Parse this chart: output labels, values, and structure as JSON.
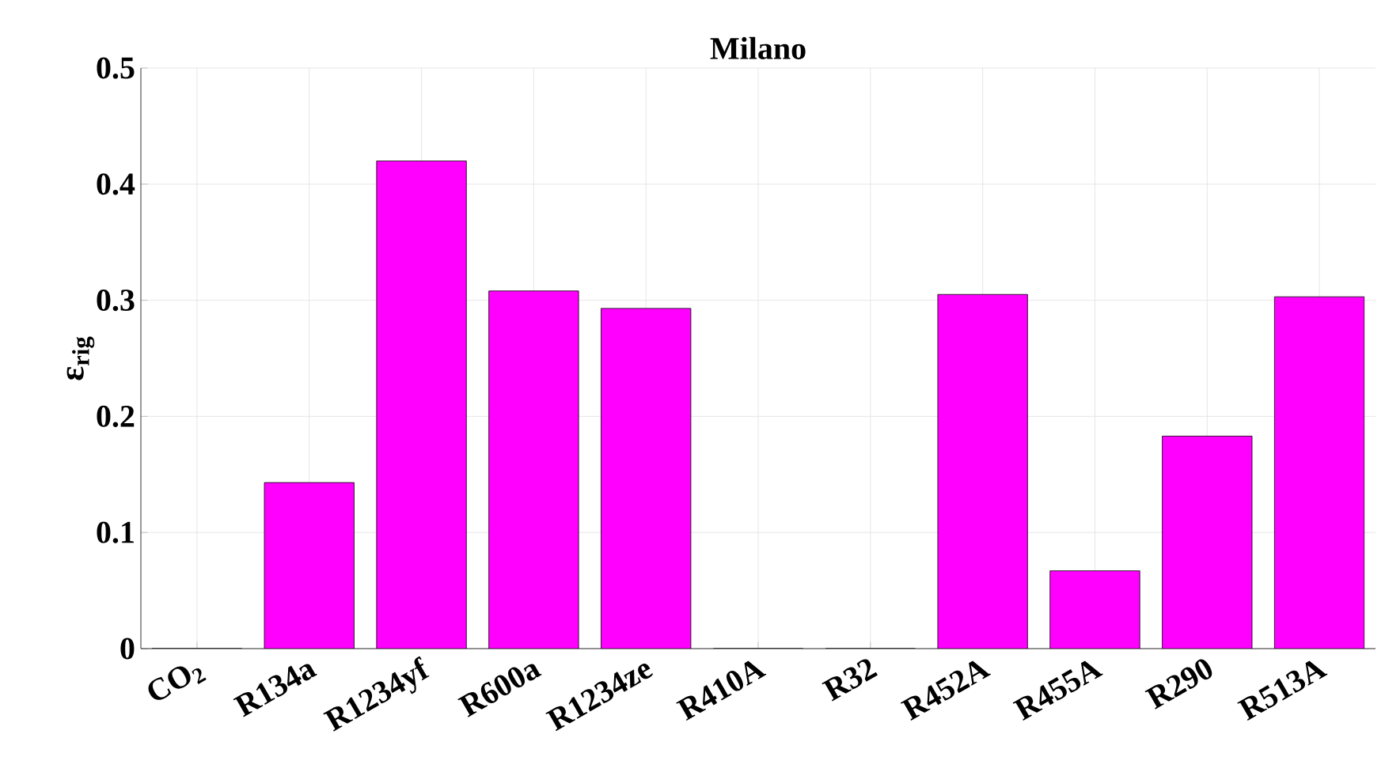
{
  "chart_data": {
    "type": "bar",
    "title": "Milano",
    "ylabel": "ε$_{rig}$",
    "categories": [
      "CO$_{2}$",
      "R134a",
      "R1234yf",
      "R600a",
      "R1234ze",
      "R410A",
      "R32",
      "R452A",
      "R455A",
      "R290",
      "R513A"
    ],
    "values": [
      0,
      0.143,
      0.42,
      0.308,
      0.293,
      0,
      0,
      0.305,
      0.067,
      0.183,
      0.303
    ],
    "color": "#ff00ff",
    "ylim": [
      0,
      0.5
    ],
    "yticks": [
      0,
      0.1,
      0.2,
      0.3,
      0.4,
      0.5
    ],
    "grid": true
  }
}
